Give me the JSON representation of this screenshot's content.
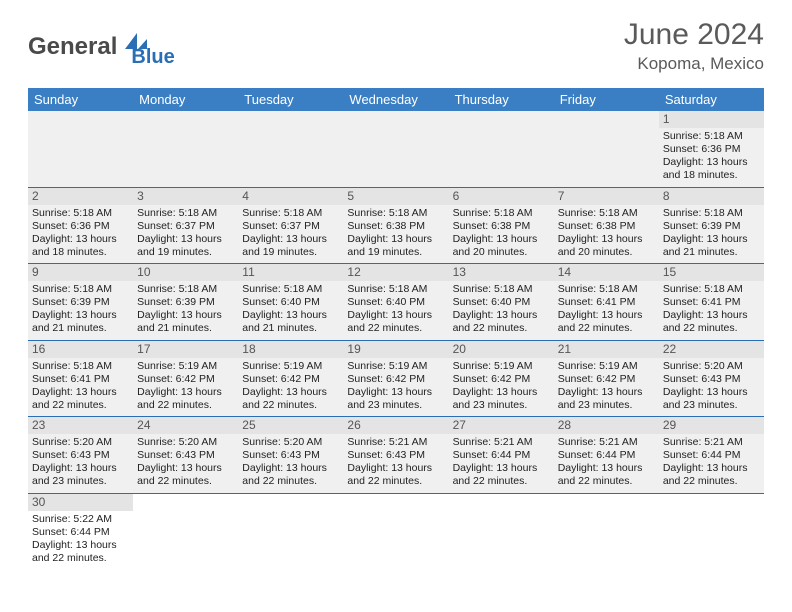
{
  "brand": {
    "part1": "General",
    "part2": "Blue"
  },
  "title": "June 2024",
  "location": "Kopoma, Mexico",
  "colors": {
    "header_bg": "#3a7fc4",
    "header_text": "#ffffff",
    "border": "#2a6fb5",
    "daynum_bg": "#e4e4e4",
    "text": "#333333",
    "brand_blue": "#2a6fb5"
  },
  "weekdays": [
    "Sunday",
    "Monday",
    "Tuesday",
    "Wednesday",
    "Thursday",
    "Friday",
    "Saturday"
  ],
  "weeks": [
    [
      null,
      null,
      null,
      null,
      null,
      null,
      {
        "n": "1",
        "sr": "5:18 AM",
        "ss": "6:36 PM",
        "dh": "13",
        "dm": "18"
      }
    ],
    [
      {
        "n": "2",
        "sr": "5:18 AM",
        "ss": "6:36 PM",
        "dh": "13",
        "dm": "18"
      },
      {
        "n": "3",
        "sr": "5:18 AM",
        "ss": "6:37 PM",
        "dh": "13",
        "dm": "19"
      },
      {
        "n": "4",
        "sr": "5:18 AM",
        "ss": "6:37 PM",
        "dh": "13",
        "dm": "19"
      },
      {
        "n": "5",
        "sr": "5:18 AM",
        "ss": "6:38 PM",
        "dh": "13",
        "dm": "19"
      },
      {
        "n": "6",
        "sr": "5:18 AM",
        "ss": "6:38 PM",
        "dh": "13",
        "dm": "20"
      },
      {
        "n": "7",
        "sr": "5:18 AM",
        "ss": "6:38 PM",
        "dh": "13",
        "dm": "20"
      },
      {
        "n": "8",
        "sr": "5:18 AM",
        "ss": "6:39 PM",
        "dh": "13",
        "dm": "21"
      }
    ],
    [
      {
        "n": "9",
        "sr": "5:18 AM",
        "ss": "6:39 PM",
        "dh": "13",
        "dm": "21"
      },
      {
        "n": "10",
        "sr": "5:18 AM",
        "ss": "6:39 PM",
        "dh": "13",
        "dm": "21"
      },
      {
        "n": "11",
        "sr": "5:18 AM",
        "ss": "6:40 PM",
        "dh": "13",
        "dm": "21"
      },
      {
        "n": "12",
        "sr": "5:18 AM",
        "ss": "6:40 PM",
        "dh": "13",
        "dm": "22"
      },
      {
        "n": "13",
        "sr": "5:18 AM",
        "ss": "6:40 PM",
        "dh": "13",
        "dm": "22"
      },
      {
        "n": "14",
        "sr": "5:18 AM",
        "ss": "6:41 PM",
        "dh": "13",
        "dm": "22"
      },
      {
        "n": "15",
        "sr": "5:18 AM",
        "ss": "6:41 PM",
        "dh": "13",
        "dm": "22"
      }
    ],
    [
      {
        "n": "16",
        "sr": "5:18 AM",
        "ss": "6:41 PM",
        "dh": "13",
        "dm": "22"
      },
      {
        "n": "17",
        "sr": "5:19 AM",
        "ss": "6:42 PM",
        "dh": "13",
        "dm": "22"
      },
      {
        "n": "18",
        "sr": "5:19 AM",
        "ss": "6:42 PM",
        "dh": "13",
        "dm": "22"
      },
      {
        "n": "19",
        "sr": "5:19 AM",
        "ss": "6:42 PM",
        "dh": "13",
        "dm": "23"
      },
      {
        "n": "20",
        "sr": "5:19 AM",
        "ss": "6:42 PM",
        "dh": "13",
        "dm": "23"
      },
      {
        "n": "21",
        "sr": "5:19 AM",
        "ss": "6:42 PM",
        "dh": "13",
        "dm": "23"
      },
      {
        "n": "22",
        "sr": "5:20 AM",
        "ss": "6:43 PM",
        "dh": "13",
        "dm": "23"
      }
    ],
    [
      {
        "n": "23",
        "sr": "5:20 AM",
        "ss": "6:43 PM",
        "dh": "13",
        "dm": "23"
      },
      {
        "n": "24",
        "sr": "5:20 AM",
        "ss": "6:43 PM",
        "dh": "13",
        "dm": "22"
      },
      {
        "n": "25",
        "sr": "5:20 AM",
        "ss": "6:43 PM",
        "dh": "13",
        "dm": "22"
      },
      {
        "n": "26",
        "sr": "5:21 AM",
        "ss": "6:43 PM",
        "dh": "13",
        "dm": "22"
      },
      {
        "n": "27",
        "sr": "5:21 AM",
        "ss": "6:44 PM",
        "dh": "13",
        "dm": "22"
      },
      {
        "n": "28",
        "sr": "5:21 AM",
        "ss": "6:44 PM",
        "dh": "13",
        "dm": "22"
      },
      {
        "n": "29",
        "sr": "5:21 AM",
        "ss": "6:44 PM",
        "dh": "13",
        "dm": "22"
      }
    ],
    [
      {
        "n": "30",
        "sr": "5:22 AM",
        "ss": "6:44 PM",
        "dh": "13",
        "dm": "22"
      },
      null,
      null,
      null,
      null,
      null,
      null
    ]
  ],
  "labels": {
    "sunrise": "Sunrise:",
    "sunset": "Sunset:",
    "daylight_prefix": "Daylight:",
    "hours_word": "hours",
    "and_word": "and",
    "minutes_word": "minutes."
  }
}
